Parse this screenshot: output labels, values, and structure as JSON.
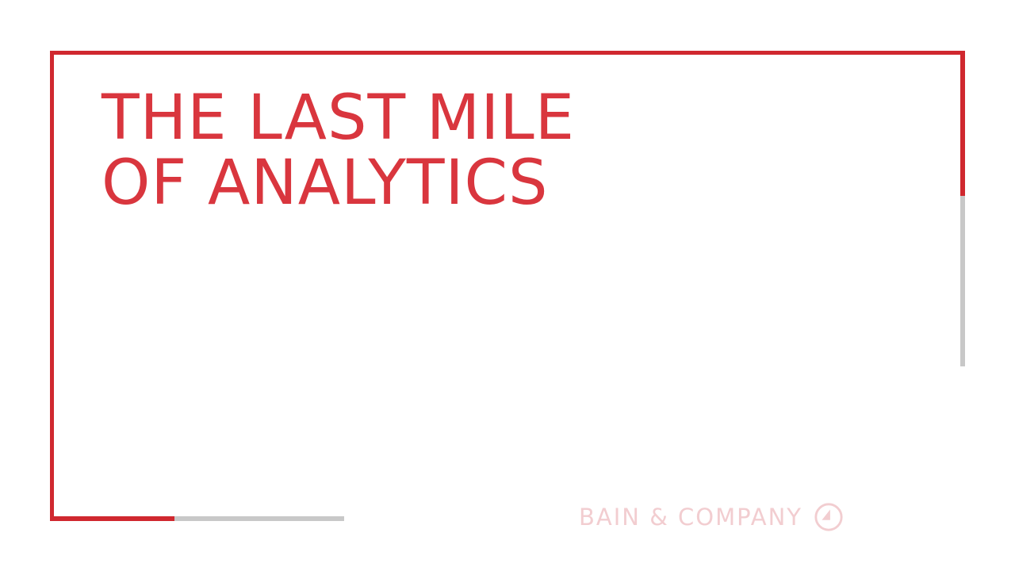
{
  "colors": {
    "accent": "#d0282f",
    "title": "#d9363e",
    "gray_line": "#c8c8c8",
    "logo": "#f2cdd0"
  },
  "title": {
    "line1": "THE LAST MILE",
    "line2": "OF ANALYTICS"
  },
  "brand": {
    "name": "BAIN & COMPANY",
    "icon": "bain-compass-icon"
  }
}
